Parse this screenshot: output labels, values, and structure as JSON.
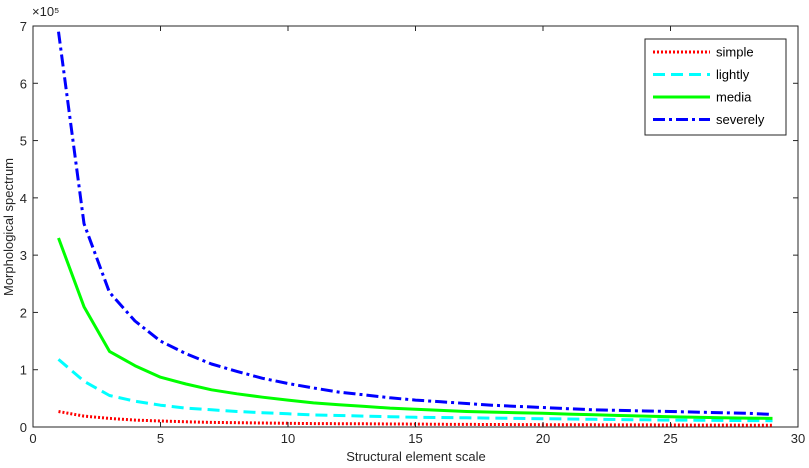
{
  "chart_data": {
    "type": "line",
    "title": "",
    "xlabel": "Structural element scale",
    "ylabel": "Morphological spectrum",
    "y_exponent_label": "×10⁵",
    "xlim": [
      0,
      30
    ],
    "ylim": [
      0,
      7
    ],
    "xticks": [
      0,
      5,
      10,
      15,
      20,
      25,
      30
    ],
    "yticks": [
      0,
      1,
      2,
      3,
      4,
      5,
      6,
      7
    ],
    "grid": false,
    "legend_position": "top-right",
    "x": [
      1,
      2,
      3,
      4,
      5,
      6,
      7,
      8,
      9,
      10,
      11,
      12,
      13,
      14,
      15,
      16,
      17,
      18,
      19,
      20,
      21,
      22,
      23,
      24,
      25,
      26,
      27,
      28,
      29
    ],
    "series": [
      {
        "name": "simple",
        "color": "#ff0000",
        "style": "dotted",
        "values": [
          0.27,
          0.19,
          0.15,
          0.12,
          0.105,
          0.09,
          0.08,
          0.075,
          0.07,
          0.065,
          0.06,
          0.058,
          0.055,
          0.052,
          0.05,
          0.048,
          0.046,
          0.044,
          0.042,
          0.04,
          0.039,
          0.038,
          0.037,
          0.036,
          0.035,
          0.034,
          0.033,
          0.032,
          0.031
        ]
      },
      {
        "name": "lightly",
        "color": "#00ffff",
        "style": "dashed",
        "values": [
          1.18,
          0.8,
          0.55,
          0.45,
          0.38,
          0.33,
          0.3,
          0.27,
          0.25,
          0.23,
          0.21,
          0.2,
          0.19,
          0.18,
          0.17,
          0.165,
          0.16,
          0.155,
          0.15,
          0.145,
          0.14,
          0.135,
          0.13,
          0.125,
          0.12,
          0.118,
          0.115,
          0.112,
          0.11
        ]
      },
      {
        "name": "media",
        "color": "#00ff00",
        "style": "solid",
        "values": [
          3.3,
          2.1,
          1.32,
          1.07,
          0.87,
          0.75,
          0.65,
          0.58,
          0.52,
          0.47,
          0.42,
          0.39,
          0.36,
          0.33,
          0.31,
          0.29,
          0.27,
          0.26,
          0.25,
          0.24,
          0.225,
          0.215,
          0.2,
          0.19,
          0.18,
          0.17,
          0.16,
          0.155,
          0.15
        ]
      },
      {
        "name": "severely",
        "color": "#0000ff",
        "style": "dashdot",
        "values": [
          6.9,
          3.55,
          2.35,
          1.85,
          1.5,
          1.28,
          1.1,
          0.97,
          0.85,
          0.76,
          0.68,
          0.61,
          0.56,
          0.51,
          0.47,
          0.44,
          0.41,
          0.38,
          0.36,
          0.34,
          0.32,
          0.3,
          0.29,
          0.28,
          0.27,
          0.26,
          0.25,
          0.24,
          0.22
        ]
      }
    ]
  }
}
